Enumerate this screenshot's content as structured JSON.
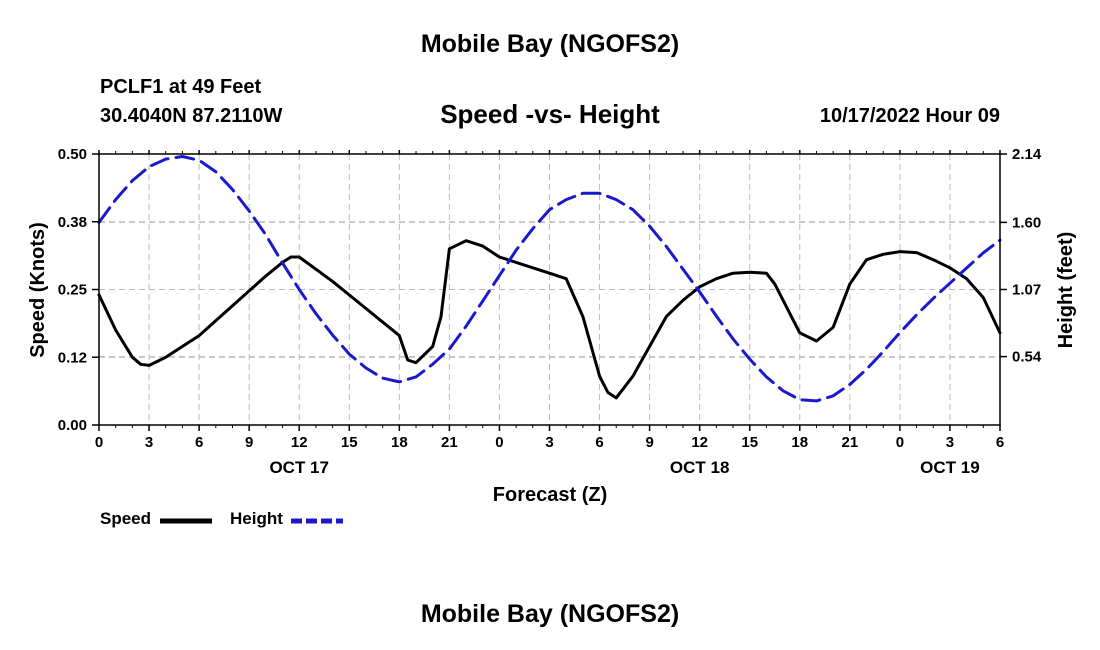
{
  "header": {
    "title": "Mobile Bay (NGOFS2)",
    "station": "PCLF1 at 49 Feet",
    "coords": "30.4040N  87.2110W",
    "subtitle": "Speed -vs- Height",
    "datetime": "10/17/2022 Hour 09"
  },
  "footer": {
    "title": "Mobile Bay (NGOFS2)"
  },
  "legend": {
    "speed": "Speed",
    "height": "Height"
  },
  "colors": {
    "speed": "#000000",
    "height": "#1a1acc",
    "grid": "#bbbbbb"
  },
  "chart_data": {
    "type": "line",
    "title": "Speed -vs- Height",
    "xlabel": "Forecast (Z)",
    "ylabel": "Speed (Knots)",
    "y2label": "Height (feet)",
    "xlim": [
      0,
      54
    ],
    "ylim": [
      0,
      0.5
    ],
    "y2lim": [
      0.0,
      2.14
    ],
    "x_ticks": [
      0,
      3,
      6,
      9,
      12,
      15,
      18,
      21,
      24,
      27,
      30,
      33,
      36,
      39,
      42,
      45,
      48,
      51,
      54
    ],
    "x_tick_labels": [
      "0",
      "3",
      "6",
      "9",
      "12",
      "15",
      "18",
      "21",
      "0",
      "3",
      "6",
      "9",
      "12",
      "15",
      "18",
      "21",
      "0",
      "3",
      "6"
    ],
    "date_labels": [
      {
        "x": 12,
        "label": "OCT 17"
      },
      {
        "x": 36,
        "label": "OCT 18"
      },
      {
        "x": 51,
        "label": "OCT 19"
      }
    ],
    "y_ticks": [
      0.0,
      0.125,
      0.25,
      0.375,
      0.5
    ],
    "y_tick_labels": [
      "0.00",
      "0.12",
      "0.25",
      "0.38",
      "0.50"
    ],
    "y2_ticks": [
      0.54,
      1.07,
      1.6,
      2.14
    ],
    "y2_tick_labels": [
      "0.54",
      "1.07",
      "1.60",
      "2.14"
    ],
    "series": [
      {
        "name": "Speed",
        "axis": "left",
        "style": "solid",
        "x": [
          0,
          1,
          2,
          2.5,
          3,
          4,
          6,
          8,
          10,
          11,
          11.5,
          12,
          14,
          16,
          18,
          18.5,
          19,
          20,
          20.5,
          21,
          22,
          23,
          24,
          26,
          27,
          28,
          29,
          30,
          30.5,
          31,
          32,
          33,
          34,
          35,
          36,
          37,
          38,
          39,
          40,
          40.5,
          41,
          42,
          43,
          44,
          45,
          46,
          47,
          48,
          49,
          50,
          51,
          52,
          53,
          54
        ],
        "y": [
          0.24,
          0.175,
          0.125,
          0.112,
          0.11,
          0.125,
          0.165,
          0.22,
          0.275,
          0.3,
          0.31,
          0.31,
          0.265,
          0.215,
          0.165,
          0.12,
          0.115,
          0.145,
          0.2,
          0.325,
          0.34,
          0.33,
          0.31,
          0.29,
          0.28,
          0.27,
          0.2,
          0.09,
          0.06,
          0.05,
          0.09,
          0.145,
          0.2,
          0.23,
          0.255,
          0.27,
          0.28,
          0.282,
          0.28,
          0.26,
          0.23,
          0.17,
          0.155,
          0.18,
          0.26,
          0.305,
          0.315,
          0.32,
          0.318,
          0.305,
          0.29,
          0.27,
          0.235,
          0.17
        ]
      },
      {
        "name": "Height",
        "axis": "right",
        "style": "dashed",
        "x": [
          0,
          1,
          2,
          3,
          4,
          5,
          6,
          7,
          8,
          9,
          10,
          11,
          12,
          13,
          14,
          15,
          16,
          17,
          18,
          19,
          20,
          21,
          22,
          23,
          24,
          25,
          26,
          27,
          28,
          29,
          30,
          31,
          32,
          33,
          34,
          35,
          36,
          37,
          38,
          39,
          40,
          41,
          42,
          43,
          44,
          45,
          46,
          47,
          48,
          49,
          50,
          51,
          52,
          53,
          54
        ],
        "y": [
          1.6,
          1.78,
          1.93,
          2.04,
          2.1,
          2.12,
          2.09,
          2.0,
          1.86,
          1.69,
          1.5,
          1.28,
          1.07,
          0.88,
          0.71,
          0.56,
          0.45,
          0.37,
          0.34,
          0.38,
          0.48,
          0.6,
          0.78,
          0.98,
          1.18,
          1.38,
          1.55,
          1.7,
          1.78,
          1.83,
          1.83,
          1.78,
          1.7,
          1.57,
          1.41,
          1.23,
          1.05,
          0.86,
          0.68,
          0.52,
          0.38,
          0.27,
          0.2,
          0.19,
          0.23,
          0.32,
          0.44,
          0.58,
          0.73,
          0.87,
          1.0,
          1.12,
          1.24,
          1.36,
          1.46
        ]
      }
    ]
  }
}
